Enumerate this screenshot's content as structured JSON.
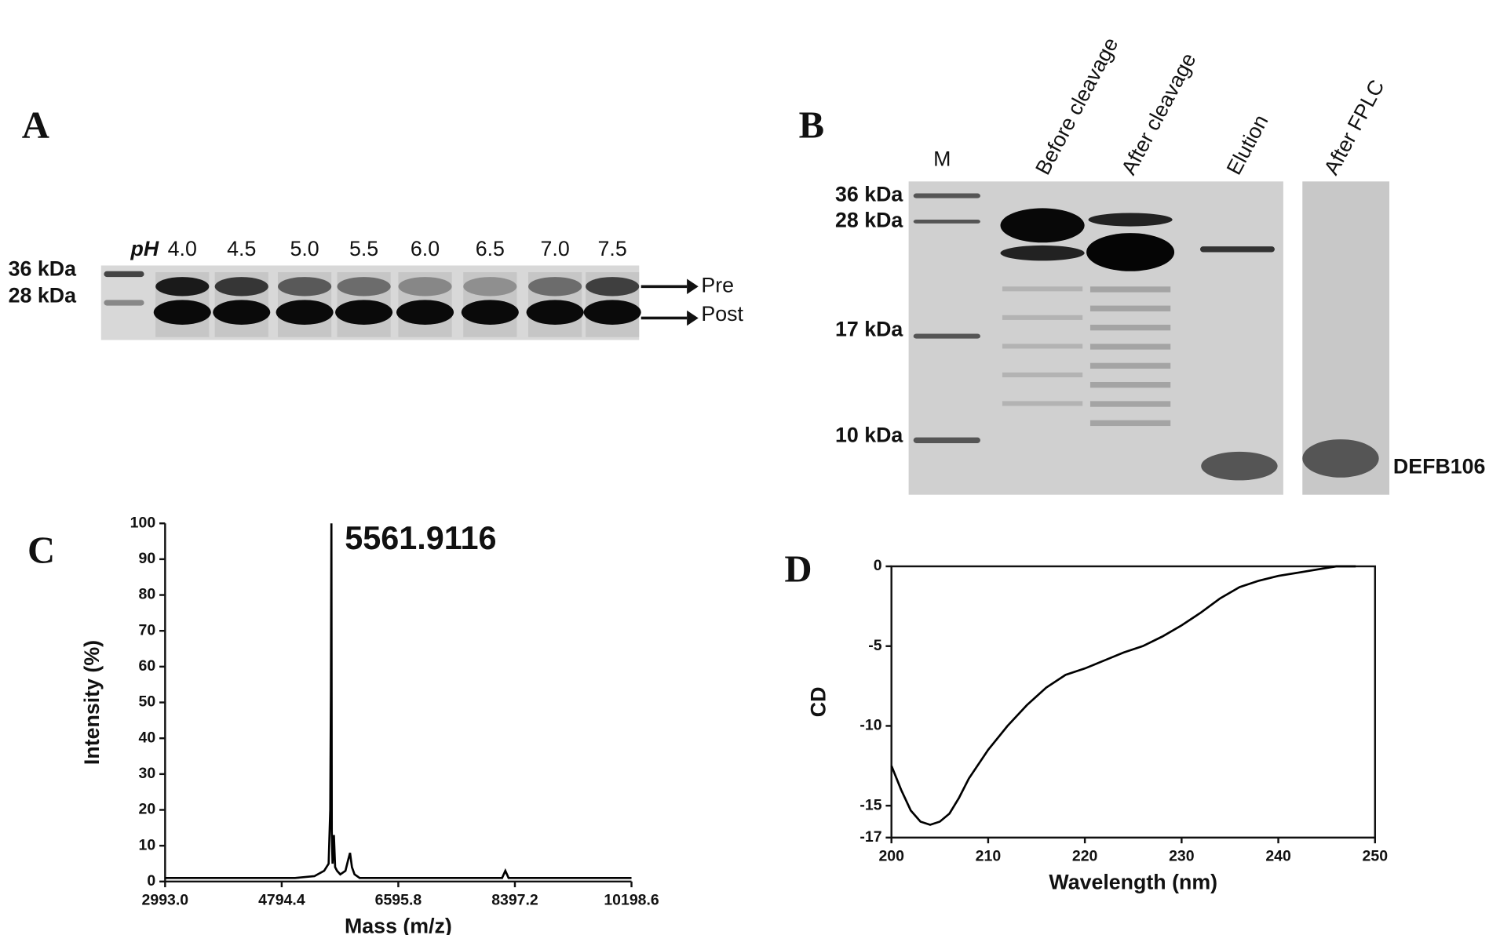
{
  "panels": {
    "a": {
      "label": "A",
      "marker_labels": [
        "36 kDa",
        "28 kDa"
      ],
      "ph_prefix": "pH",
      "lanes": [
        "4.0",
        "4.5",
        "5.0",
        "5.5",
        "6.0",
        "6.5",
        "7.0",
        "7.5"
      ],
      "band_labels": [
        "Pre",
        "Post"
      ]
    },
    "b": {
      "label": "B",
      "lanes": [
        "M",
        "Before cleavage",
        "After cleavage",
        "Elution",
        "After FPLC"
      ],
      "marker_labels": [
        "36 kDa",
        "28 kDa",
        "17 kDa",
        "10 kDa"
      ],
      "band_label": "DEFB106"
    }
  },
  "chart_data": [
    {
      "type": "line",
      "panel_label": "C",
      "annotation": "5561.9116",
      "xlabel": "Mass (m/z)",
      "ylabel": "Intensity (%)",
      "color": "#000000",
      "x": [
        2993,
        3500,
        4000,
        4500,
        5000,
        5300,
        5450,
        5520,
        5545,
        5555,
        5561.9,
        5568,
        5580,
        5600,
        5620,
        5650,
        5700,
        5780,
        5820,
        5850,
        5880,
        5920,
        6000,
        6300,
        7000,
        7800,
        8200,
        8250,
        8300,
        8400,
        9000,
        10000,
        10198.6
      ],
      "values": [
        1,
        1,
        1,
        1,
        1,
        1.5,
        3,
        5,
        20,
        53,
        100,
        14,
        5,
        13,
        4,
        3,
        2,
        3,
        6,
        8,
        4,
        2,
        1,
        1,
        1,
        1,
        1,
        3,
        1,
        1,
        1,
        1,
        1
      ],
      "xlim": [
        2993,
        10198.6
      ],
      "xticks": [
        {
          "value": 2993,
          "label": "2993.0"
        },
        4794.4,
        6595.8,
        8397.2,
        10198.6
      ],
      "ylim": [
        0,
        100
      ],
      "yticks": [
        0,
        10,
        20,
        30,
        40,
        50,
        60,
        70,
        80,
        90,
        100
      ]
    },
    {
      "type": "line",
      "panel_label": "D",
      "xlabel": "Wavelength (nm)",
      "ylabel": "CD",
      "color": "#000000",
      "x": [
        200,
        201,
        202,
        203,
        204,
        205,
        206,
        207,
        208,
        210,
        212,
        214,
        216,
        218,
        220,
        222,
        224,
        226,
        228,
        230,
        232,
        234,
        236,
        238,
        240,
        242,
        244,
        246,
        248
      ],
      "values": [
        -12.5,
        -14,
        -15.3,
        -16,
        -16.2,
        -16,
        -15.5,
        -14.5,
        -13.3,
        -11.5,
        -10,
        -8.7,
        -7.6,
        -6.8,
        -6.4,
        -5.9,
        -5.4,
        -5,
        -4.4,
        -3.7,
        -2.9,
        -2,
        -1.3,
        -0.9,
        -0.6,
        -0.4,
        -0.2,
        0,
        0
      ],
      "xlim": [
        200,
        250
      ],
      "xticks": [
        200,
        210,
        220,
        230,
        240,
        250
      ],
      "ylim": [
        -17,
        0
      ],
      "yticks": [
        0,
        -5,
        -10,
        -15,
        -17
      ]
    }
  ]
}
